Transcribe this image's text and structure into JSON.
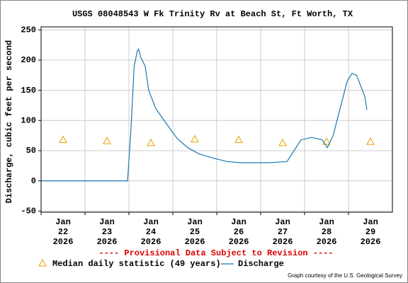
{
  "chart_data": {
    "type": "line",
    "title": "USGS 08048543 W Fk Trinity Rv at Beach St, Ft Worth, TX",
    "ylabel": "Discharge, cubic feet per second",
    "note": "---- Provisional Data Subject to Revision ----",
    "credit": "Graph courtesy of the U.S. Geological Survey",
    "xlim": [
      22,
      30
    ],
    "ylim": [
      -52,
      255
    ],
    "grid": true,
    "xticks": [
      {
        "value": 22,
        "label": "Jan 22 2026"
      },
      {
        "value": 23,
        "label": "Jan 23 2026"
      },
      {
        "value": 24,
        "label": "Jan 24 2026"
      },
      {
        "value": 25,
        "label": "Jan 25 2026"
      },
      {
        "value": 26,
        "label": "Jan 26 2026"
      },
      {
        "value": 27,
        "label": "Jan 27 2026"
      },
      {
        "value": 28,
        "label": "Jan 28 2026"
      },
      {
        "value": 29,
        "label": "Jan 29 2026"
      }
    ],
    "yticks": [
      -50,
      0,
      50,
      100,
      150,
      200,
      250
    ],
    "series": [
      {
        "name": "Median daily statistic (49 years)",
        "type": "scatter",
        "marker": "triangle",
        "color": "#e8a000",
        "x": [
          22.5,
          23.5,
          24.5,
          25.5,
          26.5,
          27.5,
          28.5,
          29.5
        ],
        "values": [
          68,
          66,
          63,
          69,
          68,
          63,
          65,
          65
        ]
      },
      {
        "name": "Discharge",
        "color": "#1a78b4",
        "x": [
          22.0,
          23.97,
          24.05,
          24.12,
          24.19,
          24.22,
          24.27,
          24.37,
          24.45,
          24.61,
          24.85,
          25.1,
          25.34,
          25.58,
          25.9,
          26.23,
          26.55,
          27.19,
          27.6,
          27.76,
          27.92,
          28.16,
          28.4,
          28.52,
          28.65,
          28.81,
          28.97,
          29.08,
          29.18,
          29.29,
          29.37,
          29.42
        ],
        "values": [
          0,
          0,
          90,
          190,
          215,
          218,
          205,
          190,
          150,
          120,
          95,
          70,
          55,
          45,
          38,
          32,
          30,
          30,
          32,
          50,
          68,
          72,
          68,
          55,
          75,
          120,
          165,
          178,
          175,
          155,
          140,
          118
        ]
      }
    ]
  }
}
